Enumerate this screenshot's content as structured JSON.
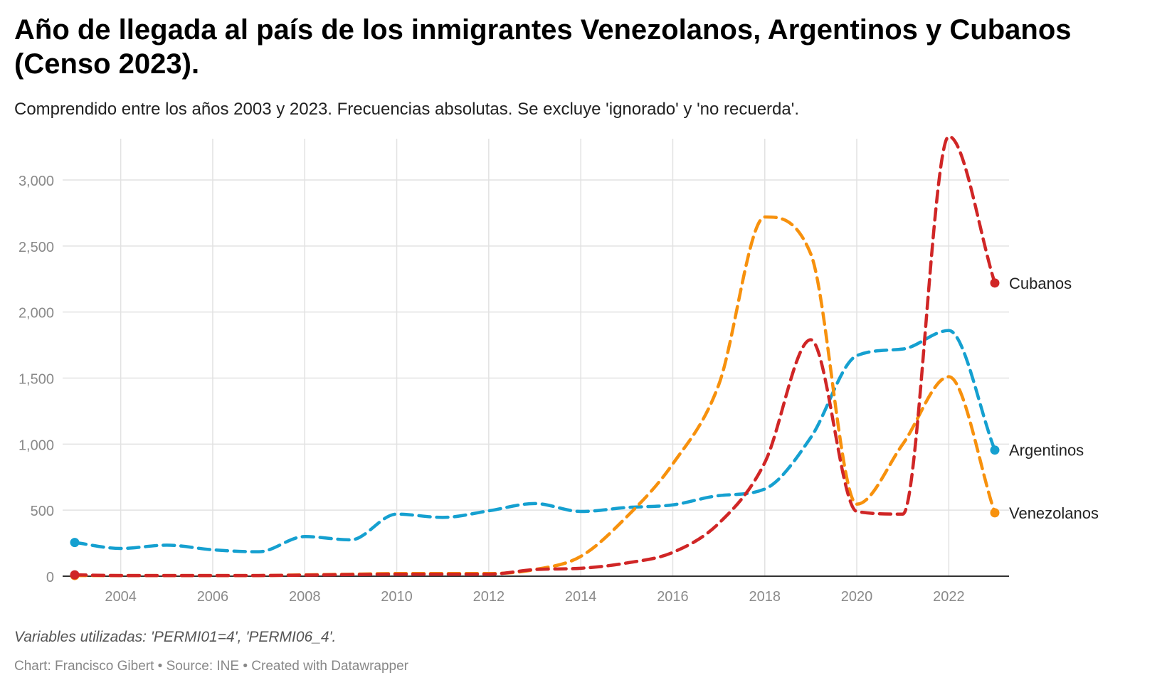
{
  "title": "Año de llegada al país de los inmigrantes Venezolanos, Argentinos y Cubanos (Censo 2023).",
  "subtitle": "Comprendido entre los años 2003 y 2023. Frecuencias absolutas. Se excluye 'ignorado' y 'no recuerda'.",
  "note": "Variables utilizadas: 'PERMI01=4', 'PERMI06_4'.",
  "credits": {
    "chart": "Chart: Francisco Gibert",
    "sep1": " • ",
    "source": "Source: INE",
    "sep2": " • ",
    "created": "Created with Datawrapper"
  },
  "chart_data": {
    "type": "line",
    "title": "Año de llegada al país de los inmigrantes Venezolanos, Argentinos y Cubanos (Censo 2023).",
    "xlabel": "",
    "ylabel": "",
    "x": [
      2003,
      2004,
      2005,
      2006,
      2007,
      2008,
      2009,
      2010,
      2011,
      2012,
      2013,
      2014,
      2015,
      2016,
      2017,
      2018,
      2019,
      2020,
      2021,
      2022,
      2023
    ],
    "xticks": [
      2004,
      2006,
      2008,
      2010,
      2012,
      2014,
      2016,
      2018,
      2020,
      2022
    ],
    "xtick_labels": [
      "2004",
      "2006",
      "2008",
      "2010",
      "2012",
      "2014",
      "2016",
      "2018",
      "2020",
      "2022"
    ],
    "yticks": [
      0,
      500,
      1000,
      1500,
      2000,
      2500,
      3000
    ],
    "ytick_labels": [
      "0",
      "500",
      "1,000",
      "1,500",
      "2,000",
      "2,500",
      "3,000"
    ],
    "xlim": [
      2002.5,
      2023.3
    ],
    "ylim": [
      0,
      3330
    ],
    "grid": true,
    "legend": "direct labels at line ends (right)",
    "line_style": "dashed",
    "series": [
      {
        "name": "Cubanos",
        "color": "#d02626",
        "values": [
          10,
          5,
          5,
          5,
          5,
          8,
          12,
          15,
          15,
          15,
          50,
          60,
          100,
          180,
          400,
          860,
          1790,
          490,
          470,
          3330,
          2220
        ]
      },
      {
        "name": "Argentinos",
        "color": "#15a0d0",
        "values": [
          255,
          210,
          235,
          200,
          185,
          300,
          275,
          470,
          445,
          495,
          550,
          490,
          520,
          540,
          610,
          660,
          1050,
          1670,
          1720,
          1860,
          955
        ]
      },
      {
        "name": "Venezolanos",
        "color": "#f7910d",
        "values": [
          5,
          5,
          5,
          5,
          5,
          10,
          15,
          20,
          20,
          20,
          50,
          150,
          450,
          850,
          1450,
          2720,
          2440,
          545,
          1000,
          1510,
          480
        ]
      }
    ]
  }
}
